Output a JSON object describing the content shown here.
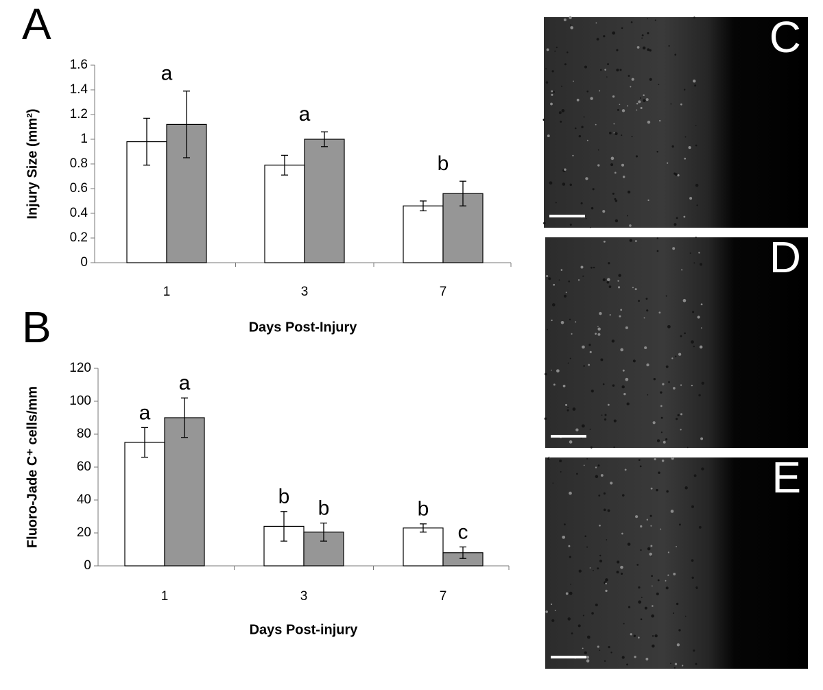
{
  "chart_data": [
    {
      "type": "bar",
      "panel": "A",
      "y_label": "Injury Size (mm²)",
      "x_label": "Days Post-Injury",
      "categories": [
        "1",
        "3",
        "7"
      ],
      "series": [
        {
          "color": "#ffffff",
          "values": [
            0.98,
            0.79,
            0.46
          ],
          "errors": [
            0.19,
            0.08,
            0.04
          ]
        },
        {
          "color": "#969696",
          "values": [
            1.12,
            1.0,
            0.56
          ],
          "errors": [
            0.27,
            0.06,
            0.1
          ]
        }
      ],
      "annotations": [
        "a",
        "a",
        "b"
      ],
      "ylim": [
        0,
        1.6
      ],
      "yticks": [
        0,
        0.2,
        0.4,
        0.6,
        0.8,
        1,
        1.2,
        1.4,
        1.6
      ],
      "grid": false
    },
    {
      "type": "bar",
      "panel": "B",
      "y_label": "Fluoro-Jade C⁺ cells/mm",
      "x_label": "Days Post-injury",
      "categories": [
        "1",
        "3",
        "7"
      ],
      "series": [
        {
          "color": "#ffffff",
          "values": [
            75,
            24,
            23
          ],
          "errors": [
            9,
            9,
            2.5
          ],
          "annotations": [
            "a",
            "b",
            "b"
          ]
        },
        {
          "color": "#969696",
          "values": [
            90,
            20.5,
            8
          ],
          "errors": [
            12,
            5.5,
            3.5
          ],
          "annotations": [
            "a",
            "b",
            "c"
          ]
        }
      ],
      "ylim": [
        0,
        120
      ],
      "yticks": [
        0,
        20,
        40,
        60,
        80,
        100,
        120
      ],
      "grid": false
    }
  ],
  "images": [
    {
      "label": "C"
    },
    {
      "label": "D"
    },
    {
      "label": "E"
    }
  ]
}
